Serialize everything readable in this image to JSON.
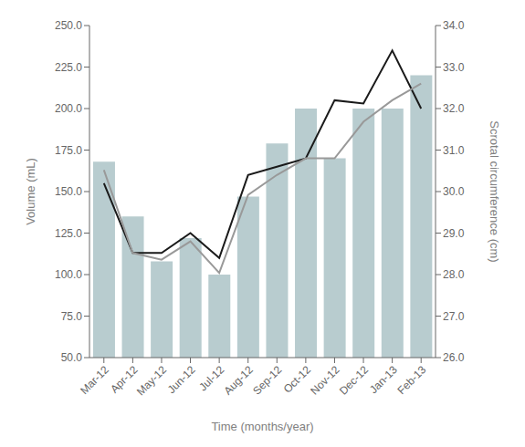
{
  "chart_data": {
    "type": "bar",
    "xlabel": "Time (months/year)",
    "ylabel": "Volume (mL)",
    "y2label": "Scrotal circumference (cm)",
    "categories": [
      "Mar-12",
      "Apr-12",
      "May-12",
      "Jun-12",
      "Jul-12",
      "Aug-12",
      "Sep-12",
      "Oct-12",
      "Nov-12",
      "Dec-12",
      "Jan-13",
      "Feb-13"
    ],
    "series": [
      {
        "type": "bar",
        "color": "#b8cccf",
        "values": [
          168,
          135,
          108,
          122,
          100,
          147,
          179,
          200,
          170,
          200,
          200,
          220
        ]
      },
      {
        "type": "line",
        "color": "#1a1a1a",
        "values": [
          155,
          113,
          113,
          125,
          110,
          160,
          165,
          170,
          205,
          203,
          235,
          200
        ]
      },
      {
        "type": "line",
        "color": "#999999",
        "values": [
          163,
          113,
          109,
          120,
          101,
          148,
          160,
          170,
          170,
          192,
          205,
          215
        ]
      }
    ],
    "ylim": [
      50,
      250
    ],
    "yticks": [
      {
        "value": 50,
        "label": "50.0"
      },
      {
        "value": 75,
        "label": "75.0"
      },
      {
        "value": 100,
        "label": "100.0"
      },
      {
        "value": 125,
        "label": "125.0"
      },
      {
        "value": 150,
        "label": "150.0"
      },
      {
        "value": 175,
        "label": "175.0"
      },
      {
        "value": 200,
        "label": "200.0"
      },
      {
        "value": 225,
        "label": "225.0"
      },
      {
        "value": 250,
        "label": "250.0"
      }
    ],
    "y2lim": [
      26,
      34
    ],
    "y2ticks": [
      {
        "value": 26,
        "label": "26.0"
      },
      {
        "value": 27,
        "label": "27.0"
      },
      {
        "value": 28,
        "label": "28.0"
      },
      {
        "value": 29,
        "label": "29.0"
      },
      {
        "value": 30,
        "label": "30.0"
      },
      {
        "value": 31,
        "label": "31.0"
      },
      {
        "value": 32,
        "label": "32.0"
      },
      {
        "value": 33,
        "label": "33.0"
      },
      {
        "value": 34,
        "label": "34.0"
      }
    ],
    "grid": false
  }
}
